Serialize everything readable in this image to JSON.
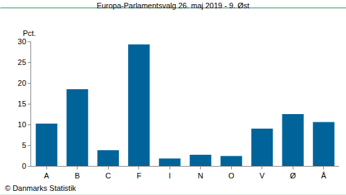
{
  "chart_data": {
    "type": "bar",
    "title": "Europa-Parlamentsvalg 26. maj 2019 - 9. Øst",
    "y_label": "Pct.",
    "annotations": [
      "© Danmarks Statistik"
    ],
    "categories": [
      "A",
      "B",
      "C",
      "F",
      "I",
      "N",
      "O",
      "V",
      "Ø",
      "Å"
    ],
    "values": [
      10.2,
      18.5,
      3.8,
      29.3,
      1.8,
      2.7,
      2.4,
      9.0,
      12.5,
      10.6
    ],
    "color": "#00649a",
    "ylim": [
      0,
      30
    ],
    "yticks": [
      0,
      5,
      10,
      15,
      20,
      25,
      30
    ],
    "grid": false
  }
}
